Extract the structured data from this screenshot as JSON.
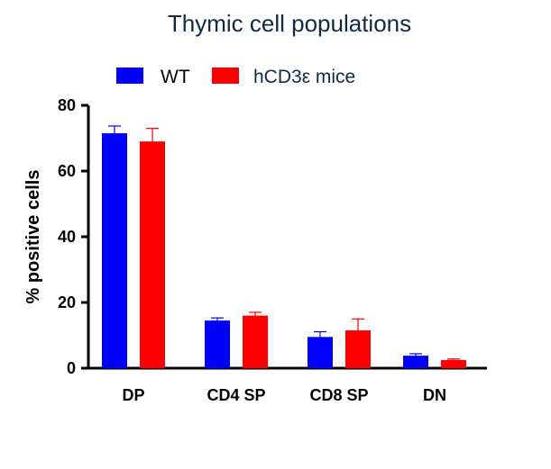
{
  "chart_data": {
    "type": "bar",
    "title": "Thymic cell populations",
    "xlabel": "",
    "ylabel": "% positive cells",
    "ylim": [
      0,
      80
    ],
    "yticks": [
      0,
      20,
      40,
      60,
      80
    ],
    "categories": [
      "DP",
      "CD4 SP",
      "CD8 SP",
      "DN"
    ],
    "series": [
      {
        "name": "WT",
        "color": "#0000ff",
        "values": [
          71.5,
          14.5,
          9.5,
          3.8
        ],
        "errors": [
          2.2,
          0.8,
          1.6,
          0.6
        ]
      },
      {
        "name": "hCD3ε mice",
        "color": "#ff0000",
        "values": [
          69,
          16,
          11.5,
          2.5
        ],
        "errors": [
          4.0,
          1.0,
          3.5,
          0.3
        ]
      }
    ],
    "legend": "top",
    "grid": false
  }
}
